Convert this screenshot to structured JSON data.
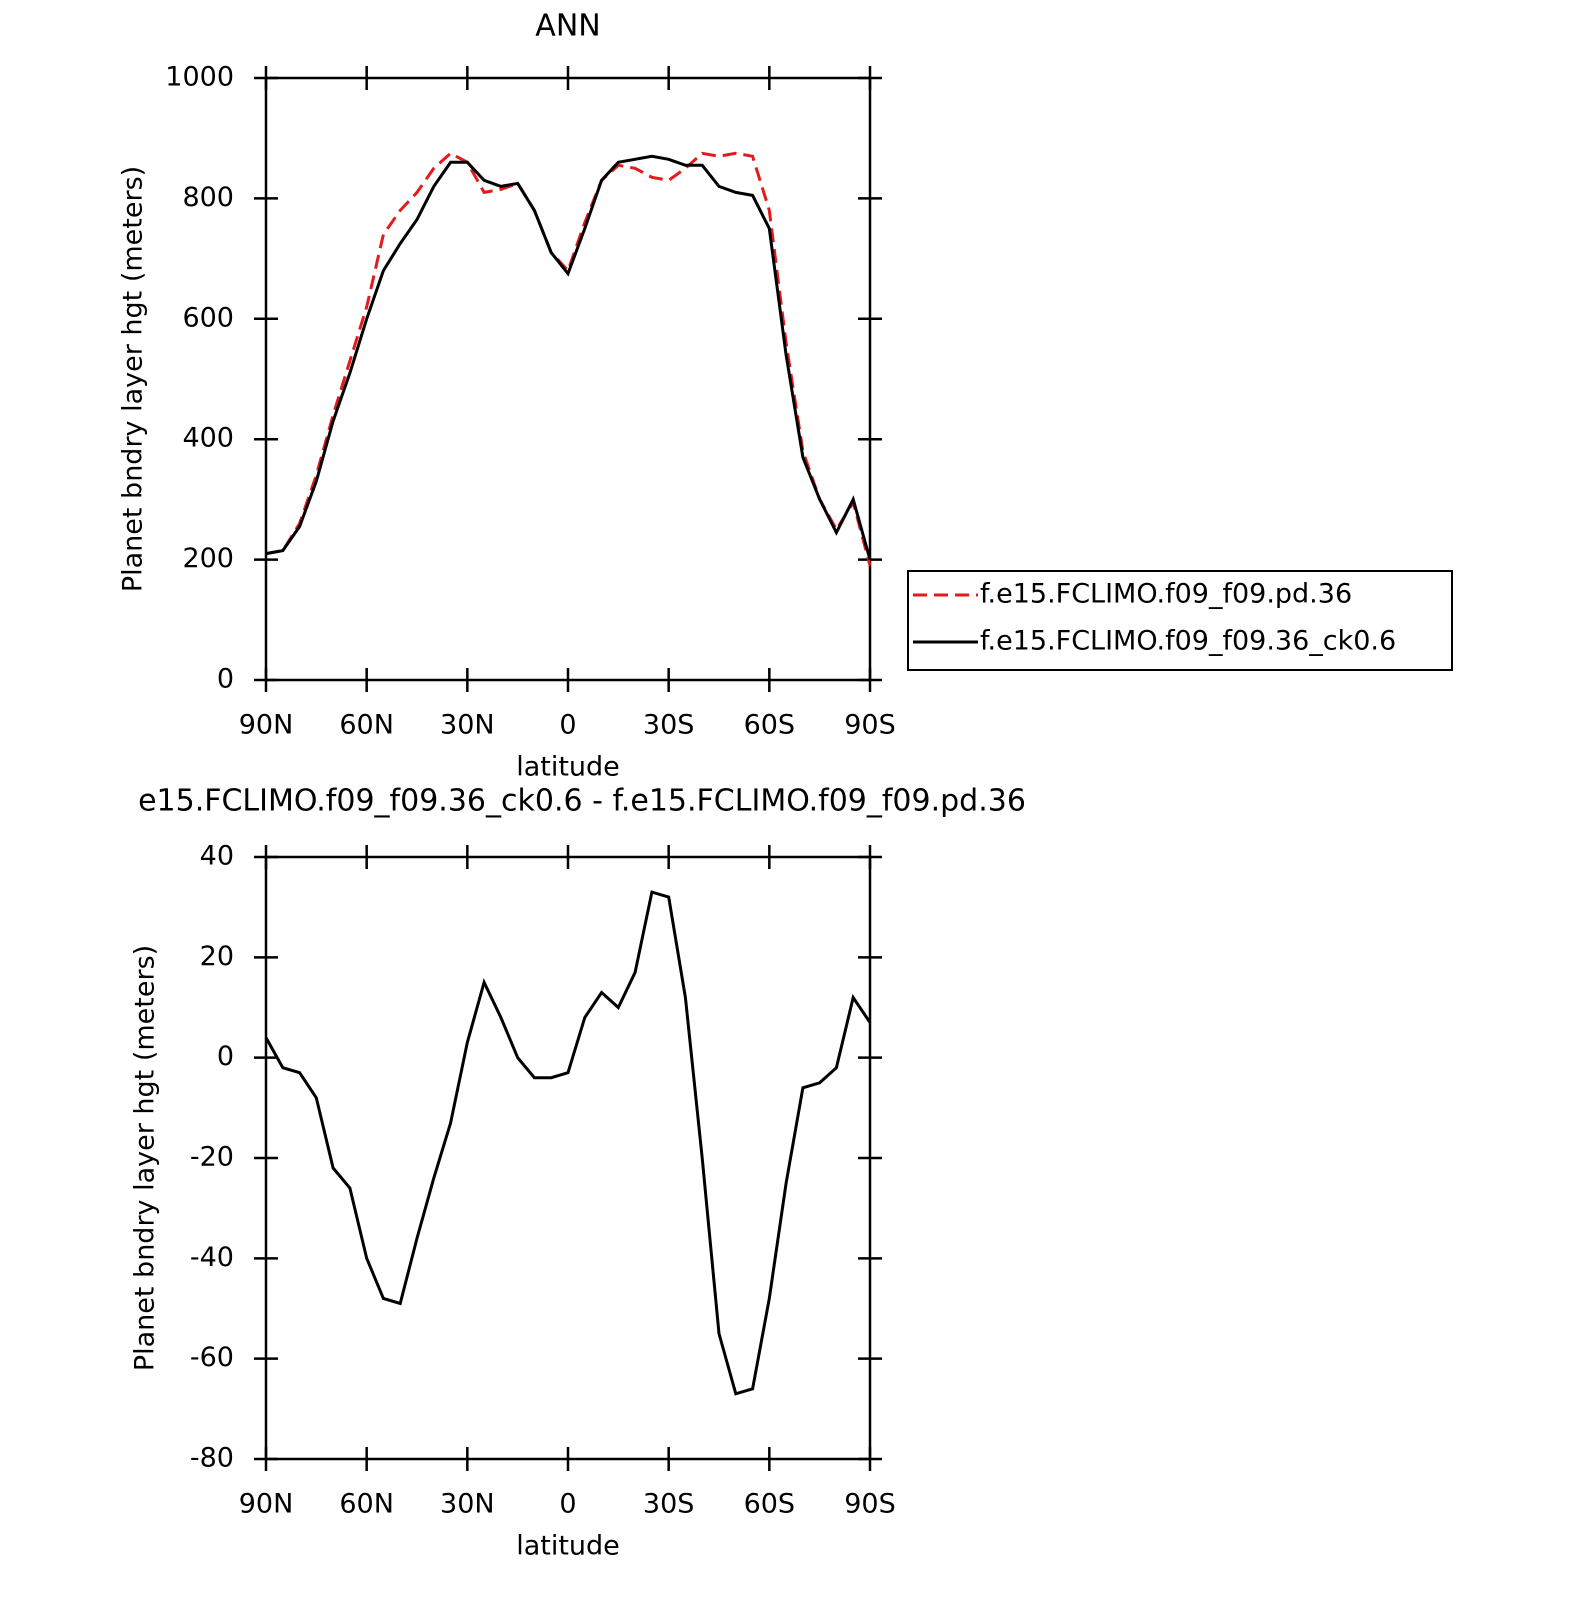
{
  "chart_data": [
    {
      "type": "line",
      "title": "ANN",
      "x_label": "latitude",
      "y_label": "Planet bndry layer hgt (meters)",
      "x": [
        90,
        85,
        80,
        75,
        70,
        65,
        60,
        55,
        50,
        45,
        40,
        35,
        30,
        25,
        20,
        15,
        10,
        5,
        0,
        -5,
        -10,
        -15,
        -20,
        -25,
        -30,
        -35,
        -40,
        -45,
        -50,
        -55,
        -60,
        -65,
        -70,
        -75,
        -80,
        -85,
        -90
      ],
      "xlim": [
        90,
        -90
      ],
      "xticks": [
        {
          "value": 90,
          "label": "90N"
        },
        {
          "value": 60,
          "label": "60N"
        },
        {
          "value": 30,
          "label": "30N"
        },
        0,
        {
          "value": -30,
          "label": "30S"
        },
        {
          "value": -60,
          "label": "60S"
        },
        {
          "value": -90,
          "label": "90S"
        }
      ],
      "ylim": [
        0,
        1000
      ],
      "yticks": [
        0,
        200,
        400,
        600,
        800,
        1000
      ],
      "legend": "right",
      "series": [
        {
          "name": "f.e15.FCLIMO.f09_f09.pd.36",
          "color": "#e41a1c",
          "style": "dashed",
          "values": [
            210,
            215,
            260,
            340,
            440,
            530,
            620,
            740,
            780,
            810,
            850,
            875,
            860,
            810,
            815,
            825,
            780,
            710,
            680,
            760,
            830,
            855,
            850,
            835,
            830,
            850,
            875,
            870,
            875,
            870,
            780,
            560,
            380,
            300,
            250,
            295,
            190
          ]
        },
        {
          "name": "f.e15.FCLIMO.f09_f09.36_ck0.6",
          "color": "#000000",
          "style": "solid",
          "values": [
            210,
            215,
            255,
            330,
            430,
            510,
            600,
            680,
            725,
            765,
            820,
            860,
            860,
            830,
            820,
            825,
            780,
            710,
            675,
            750,
            830,
            860,
            865,
            870,
            865,
            855,
            855,
            820,
            810,
            805,
            750,
            540,
            370,
            300,
            245,
            300,
            200
          ]
        }
      ]
    },
    {
      "type": "line",
      "title": "e15.FCLIMO.f09_f09.36_ck0.6 - f.e15.FCLIMO.f09_f09.pd.36",
      "x_label": "latitude",
      "y_label": "Planet bndry layer hgt (meters)",
      "x": [
        90,
        85,
        80,
        75,
        70,
        65,
        60,
        55,
        50,
        45,
        40,
        35,
        30,
        25,
        20,
        15,
        10,
        5,
        0,
        -5,
        -10,
        -15,
        -20,
        -25,
        -30,
        -35,
        -40,
        -45,
        -50,
        -55,
        -60,
        -65,
        -70,
        -75,
        -80,
        -85,
        -90
      ],
      "xlim": [
        90,
        -90
      ],
      "xticks": [
        {
          "value": 90,
          "label": "90N"
        },
        {
          "value": 60,
          "label": "60N"
        },
        {
          "value": 30,
          "label": "30N"
        },
        0,
        {
          "value": -30,
          "label": "30S"
        },
        {
          "value": -60,
          "label": "60S"
        },
        {
          "value": -90,
          "label": "90S"
        }
      ],
      "ylim": [
        -80,
        40
      ],
      "yticks": [
        -80,
        -60,
        -40,
        -20,
        0,
        20,
        40
      ],
      "series": [
        {
          "color": "#000000",
          "style": "solid",
          "values": [
            4,
            -2,
            -3,
            -8,
            -22,
            -26,
            -40,
            -48,
            -49,
            -36,
            -24,
            -13,
            3,
            15,
            8,
            0,
            -4,
            -4,
            -3,
            8,
            13,
            10,
            17,
            33,
            32,
            12,
            -20,
            -55,
            -67,
            -66,
            -48,
            -25,
            -6,
            -5,
            -2,
            12,
            7
          ]
        }
      ]
    }
  ]
}
